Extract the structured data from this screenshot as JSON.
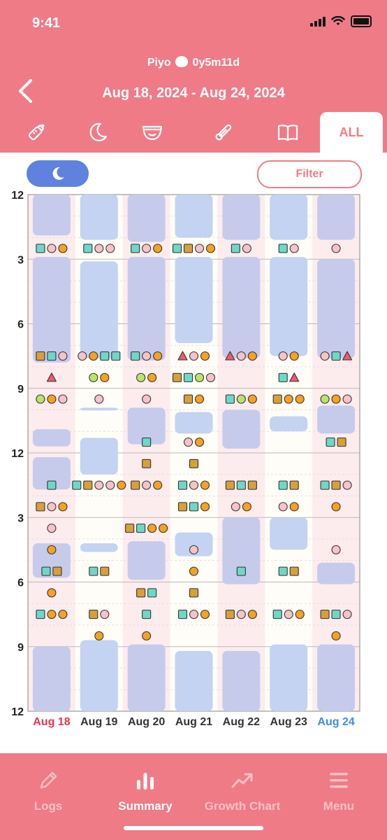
{
  "status_bar": {
    "time": "9:41"
  },
  "header": {
    "child_name": "Piyo",
    "child_age": "0y5m11d",
    "date_range": "Aug 18, 2024 - Aug 24, 2024"
  },
  "tabs": [
    {
      "name": "bottle-icon"
    },
    {
      "name": "moon-icon"
    },
    {
      "name": "diaper-icon"
    },
    {
      "name": "thermometer-icon"
    },
    {
      "name": "book-icon"
    }
  ],
  "tab_all_label": "ALL",
  "filter_label": "Filter",
  "colors": {
    "header": "#ef7b87",
    "sleep_block": "#b8c8ee",
    "toggle": "#5e82dd",
    "feed_orange": "#f5a122",
    "pink_circle": "#f7c2c8",
    "teal_square": "#6fd7c6",
    "brown_square": "#d6a03a",
    "green_circle": "#bde26a",
    "red_triangle": "#ef5a6e",
    "sunday": "#e8334a",
    "saturday": "#3d8de0"
  },
  "chart_data": {
    "type": "timeline",
    "y_labels": [
      "12",
      "3",
      "6",
      "9",
      "12",
      "3",
      "6",
      "9",
      "12"
    ],
    "days": [
      {
        "label": "Aug 18",
        "label_color": "sunday",
        "sleep": [
          [
            0,
            1.9
          ],
          [
            2.9,
            7.8
          ],
          [
            10.9,
            11.7
          ],
          [
            12.2,
            13.7
          ],
          [
            16.2,
            17.8
          ],
          [
            21.0,
            24.0
          ]
        ],
        "events": [
          {
            "h": 2.5,
            "items": [
              "ts",
              "pc",
              "oc"
            ]
          },
          {
            "h": 7.5,
            "items": [
              "bs",
              "ts",
              "pc"
            ]
          },
          {
            "h": 8.5,
            "items": [
              "rt"
            ]
          },
          {
            "h": 9.5,
            "items": [
              "gc",
              "oc",
              "pc"
            ]
          },
          {
            "h": 13.5,
            "items": [
              "ts"
            ]
          },
          {
            "h": 14.5,
            "items": [
              "bs",
              "pc",
              "oc"
            ]
          },
          {
            "h": 15.5,
            "items": [
              "pc"
            ]
          },
          {
            "h": 16.5,
            "items": [
              "oc"
            ]
          },
          {
            "h": 17.5,
            "items": [
              "ts",
              "bs"
            ]
          },
          {
            "h": 18.5,
            "items": [
              "oc"
            ]
          },
          {
            "h": 19.5,
            "items": [
              "ts",
              "oc",
              "oc"
            ]
          }
        ]
      },
      {
        "label": "Aug 19",
        "label_color": "normal",
        "sleep": [
          [
            0,
            2.1
          ],
          [
            3.1,
            7.6
          ],
          [
            9.9,
            10.0
          ],
          [
            11.3,
            13.0
          ],
          [
            16.2,
            16.6
          ],
          [
            20.7,
            24.0
          ]
        ],
        "events": [
          {
            "h": 2.5,
            "items": [
              "ts",
              "pc",
              "pc"
            ]
          },
          {
            "h": 7.5,
            "items": [
              "pc",
              "oc",
              "ts",
              "ts"
            ]
          },
          {
            "h": 8.5,
            "items": [
              "gc",
              "oc"
            ]
          },
          {
            "h": 9.5,
            "items": [
              "pc"
            ]
          },
          {
            "h": 13.5,
            "items": [
              "ts",
              "bs",
              "pc",
              "pc",
              "oc"
            ]
          },
          {
            "h": 17.5,
            "items": [
              "ts",
              "bs"
            ]
          },
          {
            "h": 19.5,
            "items": [
              "bs",
              "pc"
            ]
          },
          {
            "h": 20.5,
            "items": [
              "oc"
            ]
          }
        ]
      },
      {
        "label": "Aug 20",
        "label_color": "normal",
        "sleep": [
          [
            0,
            2.2
          ],
          [
            2.9,
            7.7
          ],
          [
            9.9,
            11.6
          ],
          [
            16.1,
            17.9
          ],
          [
            20.9,
            24.0
          ]
        ],
        "events": [
          {
            "h": 2.5,
            "items": [
              "ts",
              "pc",
              "oc"
            ]
          },
          {
            "h": 7.5,
            "items": [
              "ts",
              "pc",
              "oc"
            ]
          },
          {
            "h": 8.5,
            "items": [
              "gc",
              "oc"
            ]
          },
          {
            "h": 9.5,
            "items": [
              "pc"
            ]
          },
          {
            "h": 11.5,
            "items": [
              "ts"
            ]
          },
          {
            "h": 12.5,
            "items": [
              "bs"
            ]
          },
          {
            "h": 13.5,
            "items": [
              "bs",
              "pc",
              "oc"
            ]
          },
          {
            "h": 15.5,
            "items": [
              "bs",
              "ts",
              "oc",
              "oc"
            ]
          },
          {
            "h": 18.5,
            "items": [
              "bs",
              "ts"
            ]
          },
          {
            "h": 19.5,
            "items": [
              "ts"
            ]
          },
          {
            "h": 20.5,
            "items": [
              "oc"
            ]
          }
        ]
      },
      {
        "label": "Aug 21",
        "label_color": "normal",
        "sleep": [
          [
            0,
            2.0
          ],
          [
            2.9,
            6.9
          ],
          [
            10.1,
            11.1
          ],
          [
            15.7,
            16.8
          ],
          [
            21.2,
            24.0
          ]
        ],
        "events": [
          {
            "h": 2.5,
            "items": [
              "ts",
              "bs",
              "pc",
              "oc"
            ]
          },
          {
            "h": 7.5,
            "items": [
              "rt",
              "pc",
              "oc"
            ]
          },
          {
            "h": 8.5,
            "items": [
              "bs",
              "ts",
              "gc",
              "pc"
            ]
          },
          {
            "h": 9.5,
            "items": [
              "bs",
              "oc"
            ]
          },
          {
            "h": 11.5,
            "items": [
              "pc",
              "oc"
            ]
          },
          {
            "h": 12.5,
            "items": [
              "bs"
            ]
          },
          {
            "h": 13.5,
            "items": [
              "ts",
              "pc",
              "oc"
            ]
          },
          {
            "h": 14.5,
            "items": [
              "bs",
              "ts",
              "oc"
            ]
          },
          {
            "h": 16.5,
            "items": [
              "pc"
            ]
          },
          {
            "h": 17.5,
            "items": [
              "oc"
            ]
          },
          {
            "h": 18.5,
            "items": [
              "bs"
            ]
          },
          {
            "h": 19.5,
            "items": [
              "ts",
              "pc",
              "oc"
            ]
          }
        ]
      },
      {
        "label": "Aug 22",
        "label_color": "normal",
        "sleep": [
          [
            0,
            2.1
          ],
          [
            2.9,
            7.6
          ],
          [
            10.0,
            11.8
          ],
          [
            15.0,
            18.1
          ],
          [
            21.2,
            24.0
          ]
        ],
        "events": [
          {
            "h": 2.5,
            "items": [
              "ts",
              "pc"
            ]
          },
          {
            "h": 7.5,
            "items": [
              "rt",
              "pc",
              "oc"
            ]
          },
          {
            "h": 9.5,
            "items": [
              "ts",
              "gc",
              "oc"
            ]
          },
          {
            "h": 13.5,
            "items": [
              "bs",
              "ts",
              "bs"
            ]
          },
          {
            "h": 14.5,
            "items": [
              "pc",
              "oc"
            ]
          },
          {
            "h": 17.5,
            "items": [
              "ts"
            ]
          },
          {
            "h": 19.5,
            "items": [
              "bs",
              "pc",
              "oc"
            ]
          }
        ]
      },
      {
        "label": "Aug 23",
        "label_color": "normal",
        "sleep": [
          [
            0,
            2.1
          ],
          [
            2.9,
            7.5
          ],
          [
            10.3,
            11.0
          ],
          [
            15.0,
            16.5
          ],
          [
            20.9,
            24.0
          ]
        ],
        "events": [
          {
            "h": 2.5,
            "items": [
              "ts",
              "pc"
            ]
          },
          {
            "h": 7.5,
            "items": [
              "pc",
              "oc"
            ]
          },
          {
            "h": 8.5,
            "items": [
              "ts",
              "rt"
            ]
          },
          {
            "h": 9.5,
            "items": [
              "bs",
              "oc",
              "oc"
            ]
          },
          {
            "h": 13.5,
            "items": [
              "ts",
              "bs"
            ]
          },
          {
            "h": 14.5,
            "items": [
              "pc",
              "oc"
            ]
          },
          {
            "h": 17.5,
            "items": [
              "ts",
              "bs"
            ]
          },
          {
            "h": 19.5,
            "items": [
              "ts",
              "pc",
              "oc"
            ]
          }
        ]
      },
      {
        "label": "Aug 24",
        "label_color": "saturday",
        "sleep": [
          [
            0,
            2.1
          ],
          [
            3.0,
            7.6
          ],
          [
            9.8,
            11.1
          ],
          [
            17.1,
            18.1
          ],
          [
            20.9,
            24.0
          ]
        ],
        "events": [
          {
            "h": 2.5,
            "items": [
              "pc"
            ]
          },
          {
            "h": 7.5,
            "items": [
              "pc",
              "ts",
              "rt"
            ]
          },
          {
            "h": 9.5,
            "items": [
              "gc",
              "oc",
              "pc"
            ]
          },
          {
            "h": 11.5,
            "items": [
              "ts",
              "bs"
            ]
          },
          {
            "h": 13.5,
            "items": [
              "ts",
              "bs",
              "pc"
            ]
          },
          {
            "h": 14.5,
            "items": [
              "oc"
            ]
          },
          {
            "h": 16.5,
            "items": [
              "pc"
            ]
          },
          {
            "h": 19.5,
            "items": [
              "bs",
              "ts",
              "pc"
            ]
          },
          {
            "h": 20.5,
            "items": [
              "oc"
            ]
          }
        ]
      }
    ]
  },
  "bottom_nav": [
    {
      "label": "Logs",
      "icon": "pencil-icon",
      "active": false
    },
    {
      "label": "Summary",
      "icon": "bar-chart-icon",
      "active": true
    },
    {
      "label": "Growth Chart",
      "icon": "trend-icon",
      "active": false
    },
    {
      "label": "Menu",
      "icon": "menu-icon",
      "active": false
    }
  ]
}
